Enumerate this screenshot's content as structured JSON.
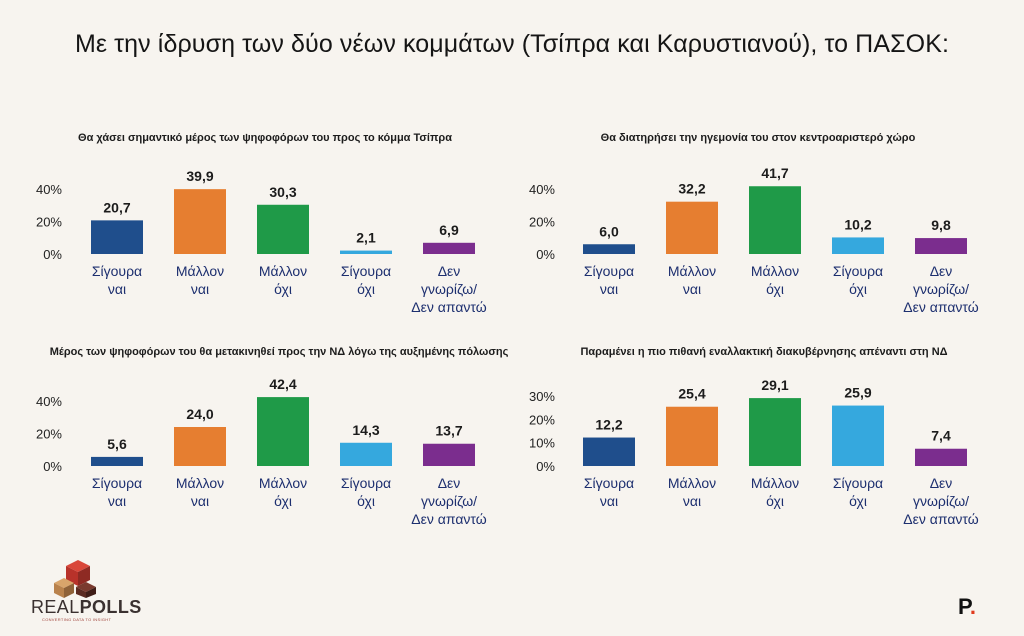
{
  "title": "Με την ίδρυση των δύο νέων κομμάτων (Τσίπρα και Καρυστιανού), το ΠΑΣΟΚ:",
  "colors": {
    "sure_yes": "#1f4e8c",
    "rather_yes": "#e67e30",
    "rather_no": "#1f9a48",
    "sure_no": "#35a8de",
    "dont_know": "#7b2d8e"
  },
  "chart_data": [
    {
      "type": "bar",
      "title": "Θα χάσει σημαντικό μέρος των ψηφοφόρων του προς το κόμμα Τσίπρα",
      "categories": [
        [
          "Σίγουρα",
          "ναι"
        ],
        [
          "Μάλλον",
          "ναι"
        ],
        [
          "Μάλλον",
          "όχι"
        ],
        [
          "Σίγουρα",
          "όχι"
        ],
        [
          "Δεν",
          "γνωρίζω/",
          "Δεν απαντώ"
        ]
      ],
      "values": [
        20.7,
        39.9,
        30.3,
        2.1,
        6.9
      ],
      "value_labels": [
        "20,7",
        "39,9",
        "30,3",
        "2,1",
        "6,9"
      ],
      "yticks": [
        "0%",
        "20%",
        "40%"
      ],
      "ylim": [
        0,
        40
      ]
    },
    {
      "type": "bar",
      "title": "Θα διατηρήσει την ηγεμονία του στον κεντροαριστερό χώρο",
      "categories": [
        [
          "Σίγουρα",
          "ναι"
        ],
        [
          "Μάλλον",
          "ναι"
        ],
        [
          "Μάλλον",
          "όχι"
        ],
        [
          "Σίγουρα",
          "όχι"
        ],
        [
          "Δεν",
          "γνωρίζω/",
          "Δεν απαντώ"
        ]
      ],
      "values": [
        6.0,
        32.2,
        41.7,
        10.2,
        9.8
      ],
      "value_labels": [
        "6,0",
        "32,2",
        "41,7",
        "10,2",
        "9,8"
      ],
      "yticks": [
        "0%",
        "20%",
        "40%"
      ],
      "ylim": [
        0,
        40
      ]
    },
    {
      "type": "bar",
      "title": "Μέρος των ψηφοφόρων του θα μετακινηθεί προς την ΝΔ λόγω της αυξημένης πόλωσης",
      "categories": [
        [
          "Σίγουρα",
          "ναι"
        ],
        [
          "Μάλλον",
          "ναι"
        ],
        [
          "Μάλλον",
          "όχι"
        ],
        [
          "Σίγουρα",
          "όχι"
        ],
        [
          "Δεν",
          "γνωρίζω/",
          "Δεν απαντώ"
        ]
      ],
      "values": [
        5.6,
        24.0,
        42.4,
        14.3,
        13.7
      ],
      "value_labels": [
        "5,6",
        "24,0",
        "42,4",
        "14,3",
        "13,7"
      ],
      "yticks": [
        "0%",
        "20%",
        "40%"
      ],
      "ylim": [
        0,
        40
      ]
    },
    {
      "type": "bar",
      "title": "Παραμένει η πιο πιθανή εναλλακτική διακυβέρνησης απέναντι στη ΝΔ",
      "categories": [
        [
          "Σίγουρα",
          "ναι"
        ],
        [
          "Μάλλον",
          "ναι"
        ],
        [
          "Μάλλον",
          "όχι"
        ],
        [
          "Σίγουρα",
          "όχι"
        ],
        [
          "Δεν",
          "γνωρίζω/",
          "Δεν απαντώ"
        ]
      ],
      "values": [
        12.2,
        25.4,
        29.1,
        25.9,
        7.4
      ],
      "value_labels": [
        "12,2",
        "25,4",
        "29,1",
        "25,9",
        "7,4"
      ],
      "yticks": [
        "0%",
        "10%",
        "20%",
        "30%"
      ],
      "ylim": [
        0,
        30
      ]
    }
  ],
  "brand": {
    "name_part1": "REAL",
    "name_part2": "POLLS",
    "tagline": "CONVERTING DATA TO INSIGHT",
    "publisher": "P",
    "publisher_dot": "."
  }
}
